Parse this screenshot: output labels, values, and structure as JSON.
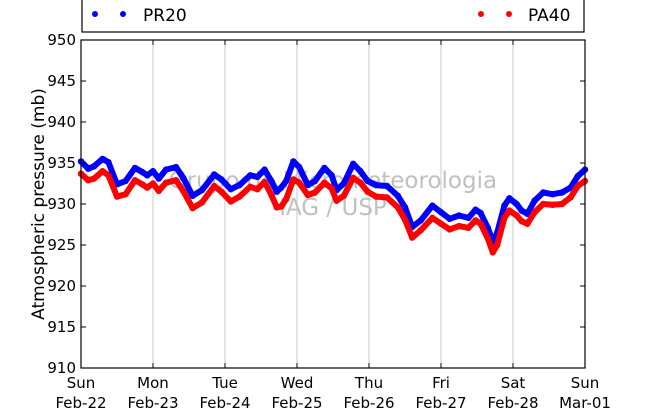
{
  "chart_data": {
    "type": "line",
    "ylabel": "Atmospheric pressure (mb)",
    "ylim": [
      910,
      950
    ],
    "yticks": [
      910,
      915,
      920,
      925,
      930,
      935,
      940,
      945,
      950
    ],
    "xlim": [
      0,
      7
    ],
    "xticks": [
      {
        "x": 0,
        "line1": "Sun",
        "line2": "Feb-22"
      },
      {
        "x": 1,
        "line1": "Mon",
        "line2": "Feb-23"
      },
      {
        "x": 2,
        "line1": "Tue",
        "line2": "Feb-24"
      },
      {
        "x": 3,
        "line1": "Wed",
        "line2": "Feb-25"
      },
      {
        "x": 4,
        "line1": "Thu",
        "line2": "Feb-26"
      },
      {
        "x": 5,
        "line1": "Fri",
        "line2": "Feb-27"
      },
      {
        "x": 6,
        "line1": "Sat",
        "line2": "Feb-28"
      },
      {
        "x": 7,
        "line1": "Sun",
        "line2": "Mar-01"
      }
    ],
    "grid": "vertical",
    "legend_placement": "top, outside plot",
    "watermark": [
      "Grupo de Micrometeorologia",
      "IAG / USP"
    ],
    "series": [
      {
        "name": "PR20",
        "color": "#0000ff",
        "points": [
          [
            0.0,
            935.2
          ],
          [
            0.1,
            934.3
          ],
          [
            0.18,
            934.6
          ],
          [
            0.3,
            935.5
          ],
          [
            0.38,
            935.1
          ],
          [
            0.5,
            932.4
          ],
          [
            0.62,
            932.8
          ],
          [
            0.75,
            934.4
          ],
          [
            0.85,
            933.9
          ],
          [
            0.92,
            933.5
          ],
          [
            1.0,
            934.0
          ],
          [
            1.08,
            933.1
          ],
          [
            1.18,
            934.2
          ],
          [
            1.32,
            934.5
          ],
          [
            1.42,
            933.2
          ],
          [
            1.55,
            931.0
          ],
          [
            1.68,
            931.7
          ],
          [
            1.85,
            933.6
          ],
          [
            1.95,
            933.0
          ],
          [
            2.08,
            931.8
          ],
          [
            2.2,
            932.3
          ],
          [
            2.35,
            933.5
          ],
          [
            2.45,
            933.3
          ],
          [
            2.55,
            934.2
          ],
          [
            2.65,
            932.7
          ],
          [
            2.72,
            931.5
          ],
          [
            2.78,
            932.0
          ],
          [
            2.85,
            932.8
          ],
          [
            2.95,
            935.2
          ],
          [
            3.03,
            934.5
          ],
          [
            3.15,
            932.3
          ],
          [
            3.25,
            932.8
          ],
          [
            3.38,
            934.4
          ],
          [
            3.48,
            933.5
          ],
          [
            3.55,
            931.7
          ],
          [
            3.65,
            932.5
          ],
          [
            3.78,
            934.9
          ],
          [
            3.88,
            934.0
          ],
          [
            3.98,
            932.8
          ],
          [
            4.1,
            932.3
          ],
          [
            4.25,
            932.2
          ],
          [
            4.4,
            931.0
          ],
          [
            4.5,
            929.6
          ],
          [
            4.6,
            927.2
          ],
          [
            4.72,
            928.0
          ],
          [
            4.88,
            929.8
          ],
          [
            5.0,
            929.0
          ],
          [
            5.12,
            928.2
          ],
          [
            5.25,
            928.6
          ],
          [
            5.38,
            928.3
          ],
          [
            5.48,
            929.3
          ],
          [
            5.55,
            928.9
          ],
          [
            5.65,
            927.1
          ],
          [
            5.72,
            925.4
          ],
          [
            5.78,
            926.5
          ],
          [
            5.88,
            929.8
          ],
          [
            5.95,
            930.7
          ],
          [
            6.05,
            930.0
          ],
          [
            6.12,
            929.2
          ],
          [
            6.2,
            928.8
          ],
          [
            6.3,
            930.4
          ],
          [
            6.42,
            931.4
          ],
          [
            6.55,
            931.2
          ],
          [
            6.68,
            931.4
          ],
          [
            6.8,
            932.0
          ],
          [
            6.9,
            933.4
          ],
          [
            7.0,
            934.2
          ]
        ]
      },
      {
        "name": "PA40",
        "color": "#ff0000",
        "points": [
          [
            0.0,
            933.7
          ],
          [
            0.1,
            932.9
          ],
          [
            0.18,
            933.1
          ],
          [
            0.3,
            934.0
          ],
          [
            0.38,
            933.5
          ],
          [
            0.5,
            930.9
          ],
          [
            0.62,
            931.2
          ],
          [
            0.75,
            932.9
          ],
          [
            0.85,
            932.4
          ],
          [
            0.92,
            932.0
          ],
          [
            1.0,
            932.5
          ],
          [
            1.08,
            931.6
          ],
          [
            1.18,
            932.6
          ],
          [
            1.32,
            932.9
          ],
          [
            1.42,
            931.6
          ],
          [
            1.55,
            929.5
          ],
          [
            1.68,
            930.2
          ],
          [
            1.85,
            932.2
          ],
          [
            1.95,
            931.5
          ],
          [
            2.08,
            930.3
          ],
          [
            2.2,
            930.9
          ],
          [
            2.35,
            932.1
          ],
          [
            2.45,
            931.8
          ],
          [
            2.55,
            932.7
          ],
          [
            2.65,
            931.0
          ],
          [
            2.72,
            929.6
          ],
          [
            2.78,
            929.7
          ],
          [
            2.85,
            930.6
          ],
          [
            2.95,
            933.0
          ],
          [
            3.03,
            932.6
          ],
          [
            3.15,
            931.1
          ],
          [
            3.25,
            931.4
          ],
          [
            3.38,
            932.6
          ],
          [
            3.48,
            931.9
          ],
          [
            3.55,
            930.4
          ],
          [
            3.65,
            931.0
          ],
          [
            3.78,
            933.2
          ],
          [
            3.88,
            932.6
          ],
          [
            3.98,
            931.5
          ],
          [
            4.1,
            930.9
          ],
          [
            4.25,
            930.8
          ],
          [
            4.4,
            929.6
          ],
          [
            4.5,
            928.1
          ],
          [
            4.6,
            925.9
          ],
          [
            4.72,
            926.8
          ],
          [
            4.88,
            928.3
          ],
          [
            5.0,
            927.6
          ],
          [
            5.12,
            926.9
          ],
          [
            5.25,
            927.3
          ],
          [
            5.38,
            927.1
          ],
          [
            5.48,
            928.0
          ],
          [
            5.55,
            927.6
          ],
          [
            5.65,
            925.8
          ],
          [
            5.72,
            924.1
          ],
          [
            5.78,
            925.0
          ],
          [
            5.88,
            928.3
          ],
          [
            5.95,
            929.2
          ],
          [
            6.05,
            928.6
          ],
          [
            6.12,
            927.9
          ],
          [
            6.2,
            927.6
          ],
          [
            6.3,
            929.0
          ],
          [
            6.42,
            930.0
          ],
          [
            6.55,
            929.9
          ],
          [
            6.68,
            930.0
          ],
          [
            6.8,
            930.8
          ],
          [
            6.9,
            932.2
          ],
          [
            7.0,
            932.8
          ]
        ]
      }
    ]
  }
}
